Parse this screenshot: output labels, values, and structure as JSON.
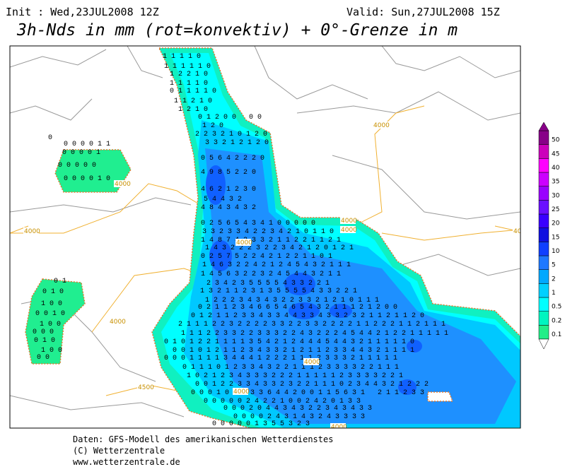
{
  "header": {
    "init": "Init : Wed,23JUL2008 12Z",
    "valid": "Valid: Sun,27JUL2008 15Z",
    "title": "3h-Nds in mm (rot=konvektiv) + 0°-Grenze in m"
  },
  "legend": {
    "items": [
      {
        "label": "0.1",
        "color": "#22ee88"
      },
      {
        "label": "0.2",
        "color": "#00f5c0"
      },
      {
        "label": "0.5",
        "color": "#00ffff"
      },
      {
        "label": "1",
        "color": "#00d0ff"
      },
      {
        "label": "2",
        "color": "#00a8ff"
      },
      {
        "label": "5",
        "color": "#1e78ff"
      },
      {
        "label": "10",
        "color": "#1040ff"
      },
      {
        "label": "15",
        "color": "#1010e0"
      },
      {
        "label": "20",
        "color": "#3a00ff"
      },
      {
        "label": "25",
        "color": "#6a10ff"
      },
      {
        "label": "30",
        "color": "#9a00ff"
      },
      {
        "label": "35",
        "color": "#cc00ff"
      },
      {
        "label": "40",
        "color": "#ff00ff"
      },
      {
        "label": "45",
        "color": "#cc00bb"
      },
      {
        "label": "50",
        "color": "#880088"
      }
    ]
  },
  "map": {
    "contour_labels": [
      "4000",
      "4000",
      "4000",
      "4000",
      "4000",
      "4000",
      "4000",
      "4000",
      "4000",
      "4500",
      "4000",
      "4000"
    ],
    "grid_rows": [
      "1 1 1 1 0",
      "1 1 1 1 1 0",
      "1 2 2 1 0",
      "1 1 1 1 0",
      "0 1 1 1 1 0",
      "1 1 2 1 0",
      "1 2 1 0",
      "0 1 2 0 0   0 0",
      "1 2 0",
      "0",
      "2 2 3 2 1 0 1 2 0",
      "0 0 0 0 1 1",
      "3 3 2 1 2 1 2 0",
      "0 0 0 0 1",
      "0 5 6 4 2 2 2 0",
      "0 0 0 0 0",
      "4 9 8 5 2 2 0",
      "0 0 0 0 1 0",
      "4 6 2 1 2 3 0",
      "5 4 4 3 2",
      "4 8 4 3 4 3 2",
      "0 2 5 6 5 4 3 4 1 0 0 0 0 0",
      "3 3 2 3 3 4 2 2 3 4 2 1 0 1 1 0",
      "1 4 8 7 4 2 3 3 2 1 1 2 2 1 1 2 1",
      "1 4 3 2 2 2 3 2 2 3 4 2 1 2 0 1 2 1",
      "0 2 5 7 5 2 2 4 2 1 2 2 1 1 0 1",
      "1 4 6 3 2 2 4 2 1 2 4 5 4 3 2 1 1 1",
      "1 4 5 6 3 2 2 3 2 4 5 4 4 3 2 1 1",
      "0 1",
      "2 3 4 2 3 5 5 5 5 4 3 3 2 2 1",
      "0 1 0",
      "1 3 2 1 1 2 3 1 3 5 5 5 5 4 3 3 2 2 1",
      "1 2 2 2 3 4 3 4 3 2 2 3 3 2 1 2 1 0 1 1 1",
      "1 0 0",
      "0 2 1 1 2 3 4 6 6 5 4 6 5 4 3 2 1 1 1 2 1 2 0 0",
      "0 0 1 0",
      "0 1 2 1 1 2 3 3 4 3 3 4 4 3 3 4 3 3 2 3 2 1 1 2 1 1 2 0",
      "1 0 0",
      "2 1 1 1 2 2 3 2 2 2 2 3 3 2 2 3 3 2 2 2 2 1 1 2 2 2 1 1 2 1 1 1",
      "0 0 0",
      "1 1 1 2 2 3 3 2 2 3 3 3 2 2 4 3 2 2 2 4 5 4 4 2 1 2 2 1 1 1 1 1",
      "0 1 0",
      "0 1 0 1 2 2 1 1 1 1 3 5 4 2 1 2 4 4 4 5 4 4 3 2 1 1 1 1 1 0",
      "1 0 0",
      "0 0 1 0 1 2 1 1 2 3 4 3 3 2 1 2 1 1 2 3 3 4 4 3 2 1 1 1 1",
      "0 0",
      "0 0 0 1 1 1 1 3 4 4 4 1 2 2 2 1 1 1 2 3 3 3 2 1 1 1 1 1",
      "0 1 1 1 0 1 2 3 3 4 3 2 2 1 1 1 2 3 3 3 3 2 2 1 1 1",
      "1 0 2 1 2 3 4 3 3 3 2 2 2 1 1 1 1 1 2 3 3 3 3 2 2 1",
      "0 0 1 2 2 3 3 4 3 3 2 3 2 2 1 1 1 0 2 3 4 4 3 2 1 2 2 2",
      "0 0 0 1 0 1 2 3 3 6 4 4 2 0 0 1 1 5 6 3 1   2 1 1 2 3 3",
      "0 0 0 0 0 2 4 2 2 1 0 0 2 4 2 0 1 3 3",
      "0 0 0 2 0 4 4 3 4 3 2 2 3 4 3 4 3 3",
      "0 0 0 0 2 4 3 1 4 3 2 4 3 3 3 3",
      "0 0 0 0 0 1 3 5 5 3 2 3"
    ]
  },
  "footer": {
    "lines": [
      "Daten: GFS-Modell des amerikanischen Wetterdienstes",
      "(C) Wetterzentrale",
      "www.wetterzentrale.de"
    ]
  }
}
